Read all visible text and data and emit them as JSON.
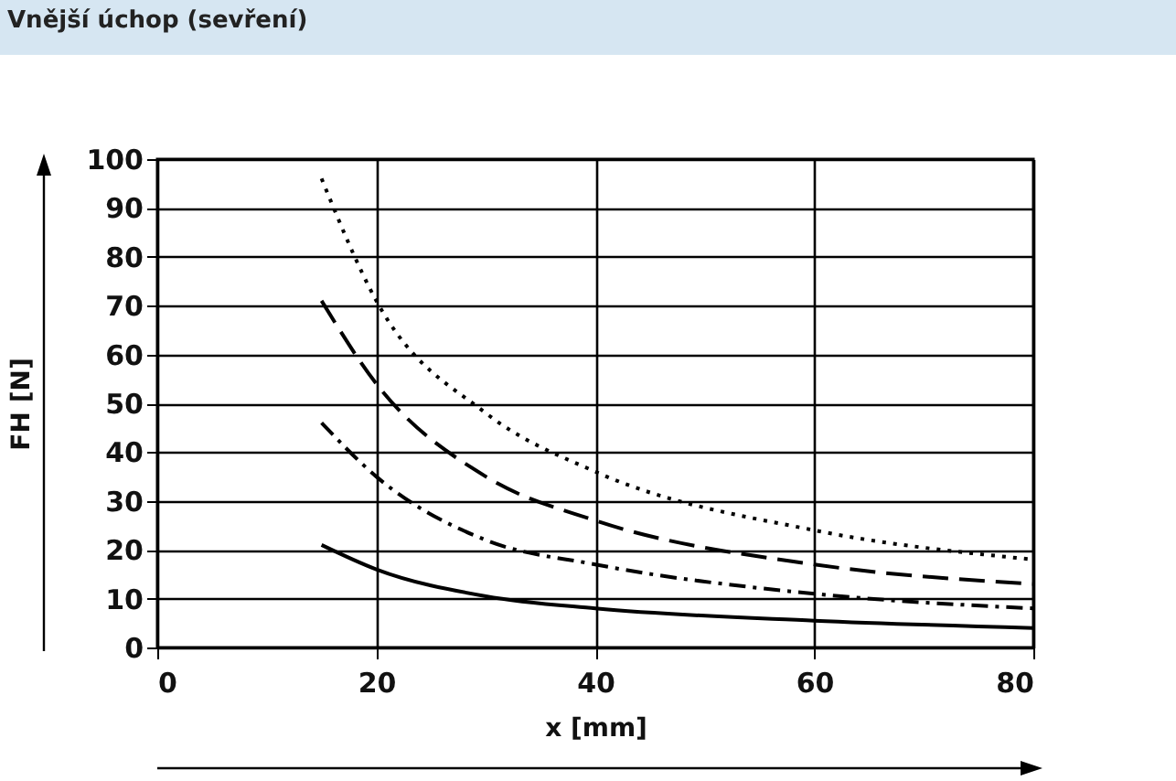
{
  "chart_data": {
    "type": "line",
    "title": "Vnější úchop (sevření)",
    "xlabel": "x [mm]",
    "ylabel": "FH [N]",
    "xlim": [
      0,
      80
    ],
    "xticks": [
      0,
      20,
      40,
      60,
      80
    ],
    "ylim": [
      0,
      100
    ],
    "yticks": [
      0,
      10,
      20,
      30,
      40,
      50,
      60,
      70,
      80,
      90,
      100
    ],
    "grid": true,
    "series": [
      {
        "color": "#000000",
        "line_style": "dotted",
        "x": [
          15,
          20,
          30,
          40,
          60,
          80
        ],
        "values": [
          96,
          71,
          48,
          36,
          24,
          18
        ]
      },
      {
        "color": "#000000",
        "line_style": "dashed",
        "x": [
          15,
          20,
          30,
          40,
          60,
          80
        ],
        "values": [
          71,
          54,
          35,
          26,
          17,
          13
        ]
      },
      {
        "color": "#000000",
        "line_style": "dashdot",
        "x": [
          15,
          20,
          30,
          40,
          60,
          80
        ],
        "values": [
          46,
          35,
          22,
          17,
          11,
          8
        ]
      },
      {
        "color": "#000000",
        "line_style": "solid",
        "x": [
          15,
          20,
          30,
          40,
          60,
          80
        ],
        "values": [
          21,
          16,
          10.5,
          8,
          5.5,
          4
        ]
      }
    ]
  }
}
